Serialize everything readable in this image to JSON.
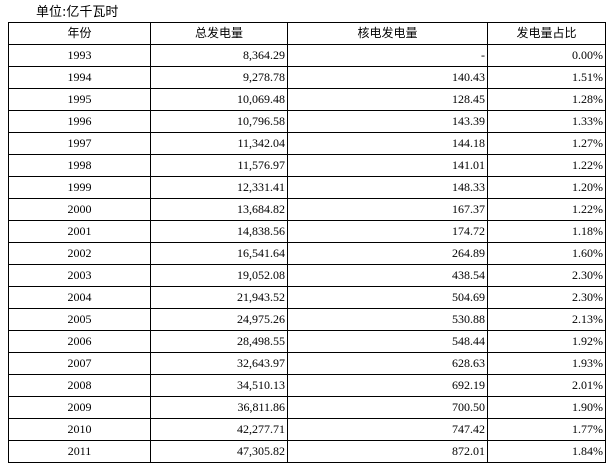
{
  "unit": "单位:亿千瓦时",
  "table": {
    "header": [
      "年份",
      "总发电量",
      "核电发电量",
      "发电量占比"
    ],
    "rows": [
      [
        "1993",
        "8,364.29",
        "-",
        "0.00%"
      ],
      [
        "1994",
        "9,278.78",
        "140.43",
        "1.51%"
      ],
      [
        "1995",
        "10,069.48",
        "128.45",
        "1.28%"
      ],
      [
        "1996",
        "10,796.58",
        "143.39",
        "1.33%"
      ],
      [
        "1997",
        "11,342.04",
        "144.18",
        "1.27%"
      ],
      [
        "1998",
        "11,576.97",
        "141.01",
        "1.22%"
      ],
      [
        "1999",
        "12,331.41",
        "148.33",
        "1.20%"
      ],
      [
        "2000",
        "13,684.82",
        "167.37",
        "1.22%"
      ],
      [
        "2001",
        "14,838.56",
        "174.72",
        "1.18%"
      ],
      [
        "2002",
        "16,541.64",
        "264.89",
        "1.60%"
      ],
      [
        "2003",
        "19,052.08",
        "438.54",
        "2.30%"
      ],
      [
        "2004",
        "21,943.52",
        "504.69",
        "2.30%"
      ],
      [
        "2005",
        "24,975.26",
        "530.88",
        "2.13%"
      ],
      [
        "2006",
        "28,498.55",
        "548.44",
        "1.92%"
      ],
      [
        "2007",
        "32,643.97",
        "628.63",
        "1.93%"
      ],
      [
        "2008",
        "34,510.13",
        "692.19",
        "2.01%"
      ],
      [
        "2009",
        "36,811.86",
        "700.50",
        "1.90%"
      ],
      [
        "2010",
        "42,277.71",
        "747.42",
        "1.77%"
      ],
      [
        "2011",
        "47,305.82",
        "872.01",
        "1.84%"
      ]
    ]
  }
}
